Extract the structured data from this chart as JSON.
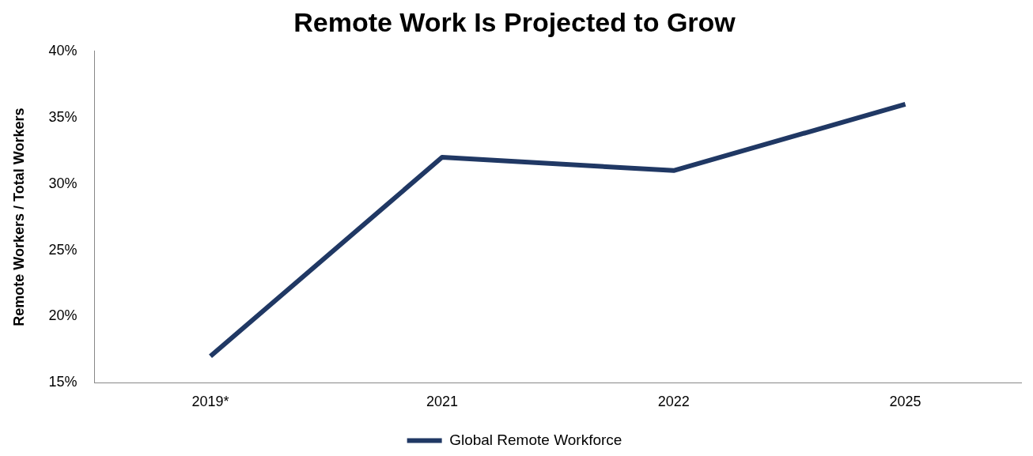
{
  "chart_data": {
    "type": "line",
    "title": "Remote Work Is Projected to Grow",
    "ylabel": "Remote Workers / Total Workers",
    "categories": [
      "2019*",
      "2021",
      "2022",
      "2025"
    ],
    "series": [
      {
        "name": "Global Remote Workforce",
        "color": "#203864",
        "values": [
          17,
          32,
          31,
          36
        ]
      }
    ],
    "ylim": [
      15,
      40
    ],
    "yticks": [
      {
        "value": 15,
        "label": "15%"
      },
      {
        "value": 20,
        "label": "20%"
      },
      {
        "value": 25,
        "label": "25%"
      },
      {
        "value": 30,
        "label": "30%"
      },
      {
        "value": 35,
        "label": "35%"
      },
      {
        "value": 40,
        "label": "40%"
      }
    ],
    "grid": false,
    "legend": "bottom",
    "marker": "none",
    "line_style": "solid"
  }
}
